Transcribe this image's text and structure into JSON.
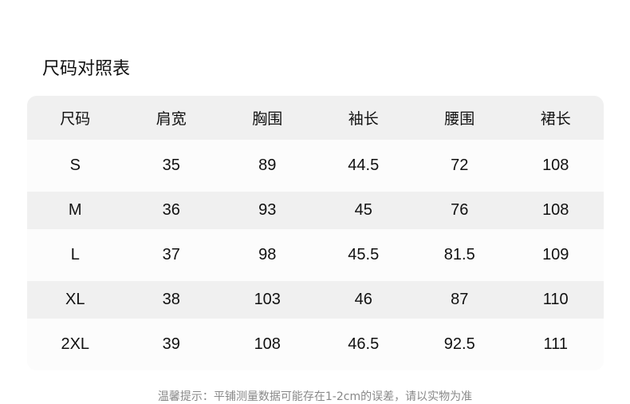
{
  "title": "尺码对照表",
  "table": {
    "headers": [
      "尺码",
      "肩宽",
      "胸围",
      "袖长",
      "腰围",
      "裙长"
    ],
    "rows": [
      [
        "S",
        "35",
        "89",
        "44.5",
        "72",
        "108"
      ],
      [
        "M",
        "36",
        "93",
        "45",
        "76",
        "108"
      ],
      [
        "L",
        "37",
        "98",
        "45.5",
        "81.5",
        "109"
      ],
      [
        "XL",
        "38",
        "103",
        "46",
        "87",
        "110"
      ],
      [
        "2XL",
        "39",
        "108",
        "46.5",
        "92.5",
        "111"
      ]
    ]
  },
  "note": "温馨提示：平铺测量数据可能存在1-2cm的误差，请以实物为准",
  "colors": {
    "header_bg": "#f0f0f0",
    "alt_row_bg": "#f0f0f0",
    "row_bg": "#fcfcfc",
    "note": "#888888"
  }
}
